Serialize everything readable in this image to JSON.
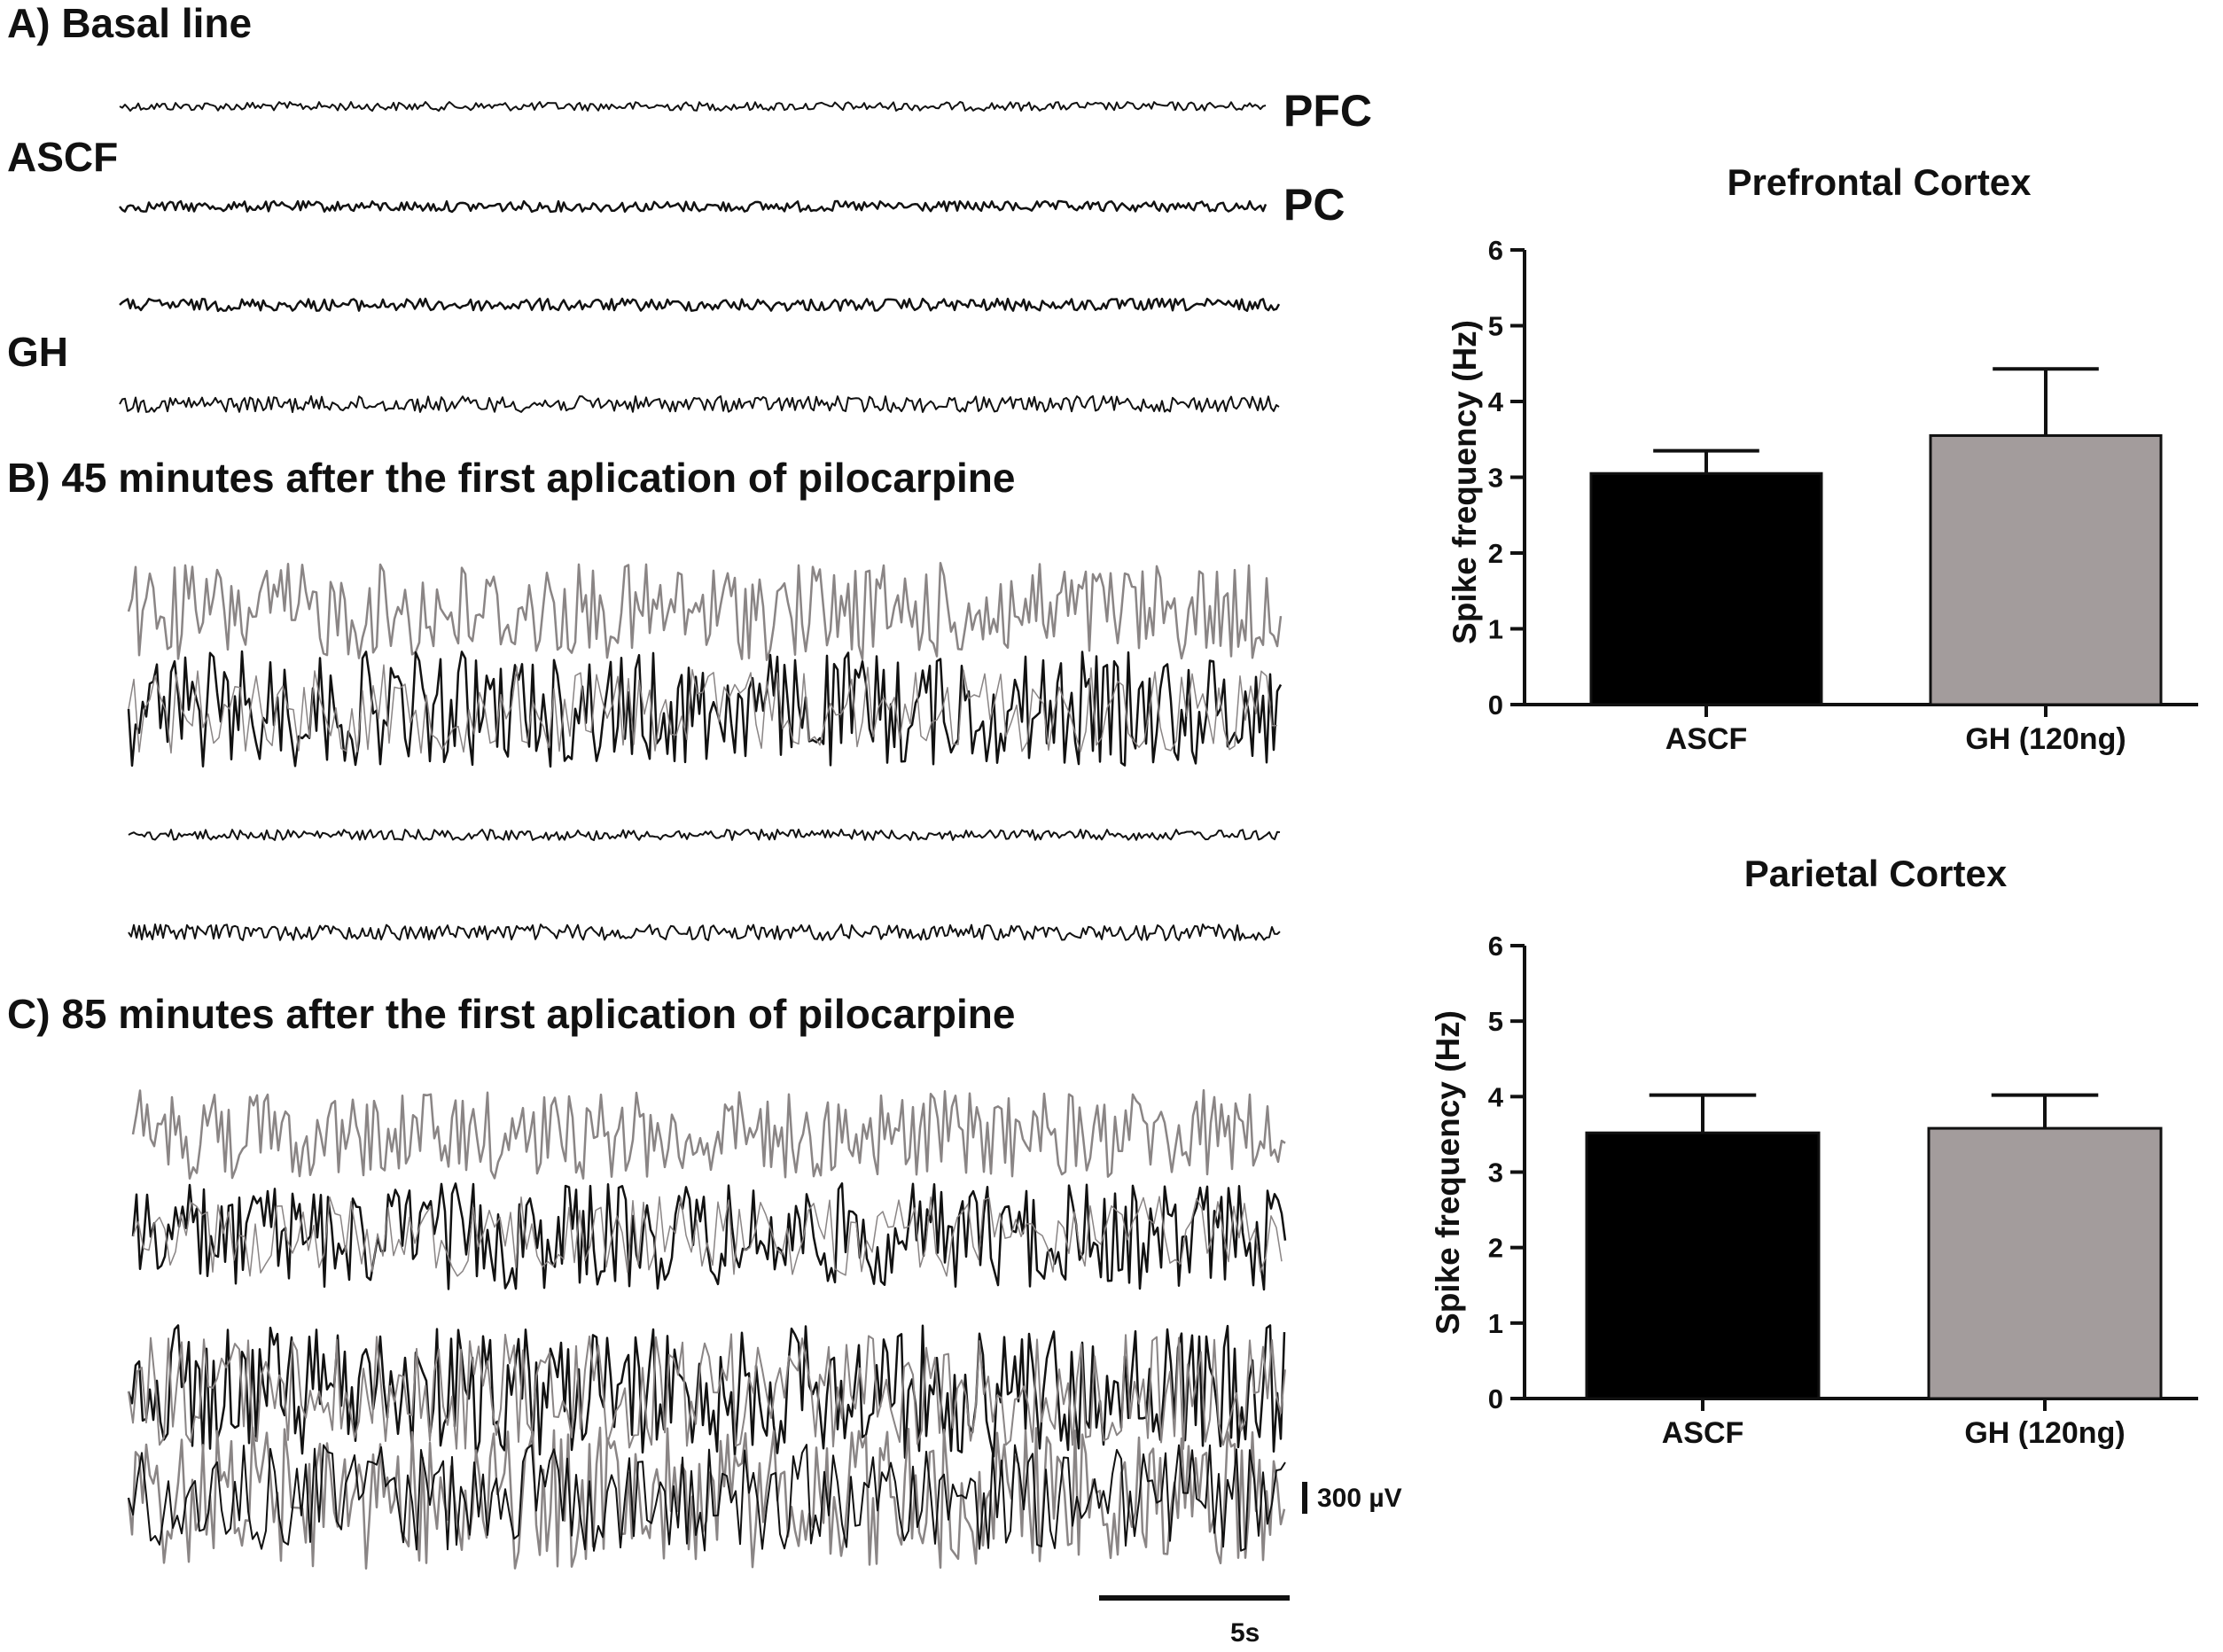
{
  "panels": {
    "a_title": "A) Basal line",
    "b_title": "B) 45 minutes after the first aplication of pilocarpine",
    "c_title": "C) 85 minutes after the first aplication of pilocarpine",
    "group_labels": [
      "ASCF",
      "GH"
    ],
    "channel_labels": [
      "PFC",
      "PC"
    ],
    "scale_voltage": "300 µV",
    "scale_time": "5s"
  },
  "colors": {
    "ascf": "#000000",
    "gh": "#a39c9c",
    "trace_dark": "#111111",
    "trace_gray": "#8a8585"
  },
  "chart_data": [
    {
      "type": "bar",
      "title": "Prefrontal Cortex",
      "ylabel": "Spike frequency (Hz)",
      "xlabel": "",
      "categories": [
        "ASCF",
        "GH (120ng)"
      ],
      "values": [
        3.05,
        3.55
      ],
      "errors": [
        0.3,
        0.88
      ],
      "ylim": [
        0,
        6
      ],
      "yticks": [
        0,
        1,
        2,
        3,
        4,
        5,
        6
      ],
      "colors": [
        "#000000",
        "#a39c9c"
      ],
      "grid": false
    },
    {
      "type": "bar",
      "title": "Parietal Cortex",
      "ylabel": "Spike frequency (Hz)",
      "xlabel": "",
      "categories": [
        "ASCF",
        "GH (120ng)"
      ],
      "values": [
        3.52,
        3.58
      ],
      "errors": [
        0.5,
        0.44
      ],
      "ylim": [
        0,
        6
      ],
      "yticks": [
        0,
        1,
        2,
        3,
        4,
        5,
        6
      ],
      "colors": [
        "#000000",
        "#a39c9c"
      ],
      "grid": false
    }
  ]
}
